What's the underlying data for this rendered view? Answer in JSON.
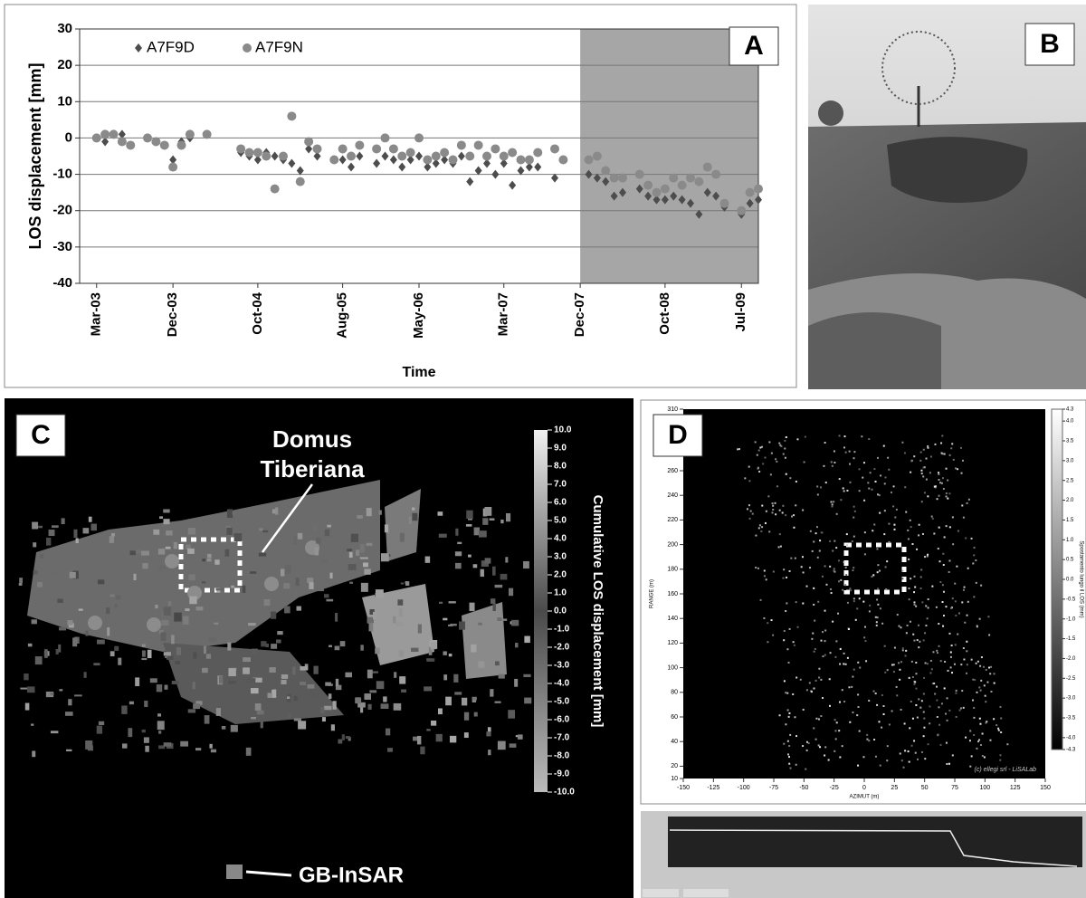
{
  "chart_data": {
    "type": "scatter",
    "label": "A",
    "ylabel": "LOS  displacement [mm]",
    "xlabel": "Time",
    "x": [
      "2003-03",
      "2003-04",
      "2003-05",
      "2003-06",
      "2003-07",
      "2003-09",
      "2003-10",
      "2003-11",
      "2003-12",
      "2004-01",
      "2004-02",
      "2004-04",
      "2004-08",
      "2004-09",
      "2004-10",
      "2004-11",
      "2004-12",
      "2005-01",
      "2005-02",
      "2005-03",
      "2005-04",
      "2005-05",
      "2005-07",
      "2005-08",
      "2005-09",
      "2005-10",
      "2005-12",
      "2006-01",
      "2006-02",
      "2006-03",
      "2006-04",
      "2006-05",
      "2006-06",
      "2006-07",
      "2006-08",
      "2006-09",
      "2006-10",
      "2006-11",
      "2006-12",
      "2007-01",
      "2007-02",
      "2007-03",
      "2007-04",
      "2007-05",
      "2007-06",
      "2007-07",
      "2007-09",
      "2007-10",
      "2008-01",
      "2008-02",
      "2008-03",
      "2008-04",
      "2008-05",
      "2008-07",
      "2008-08",
      "2008-09",
      "2008-10",
      "2008-11",
      "2008-12",
      "2009-01",
      "2009-02",
      "2009-03",
      "2009-04",
      "2009-05",
      "2009-07",
      "2009-08",
      "2009-09"
    ],
    "series": [
      {
        "name": "A7F9D",
        "color": "#4d4d4d",
        "marker": "diamond",
        "values": [
          0,
          -1,
          1,
          1,
          -2,
          0,
          -1,
          -2,
          -6,
          -1,
          0,
          1,
          -4,
          -5,
          -6,
          -4,
          -5,
          -6,
          -7,
          -9,
          -3,
          -5,
          -6,
          -6,
          -8,
          -5,
          -7,
          -5,
          -6,
          -8,
          -6,
          -5,
          -8,
          -7,
          -6,
          -7,
          -5,
          -12,
          -9,
          -7,
          -10,
          -7,
          -13,
          -9,
          -8,
          -8,
          -11,
          -6,
          -10,
          -11,
          -12,
          -16,
          -15,
          -14,
          -16,
          -17,
          -17,
          -16,
          -17,
          -18,
          -21,
          -15,
          -16,
          -19,
          -21,
          -18,
          -17
        ]
      },
      {
        "name": "A7F9N",
        "color": "#8a8a8a",
        "marker": "circle",
        "values": [
          0,
          1,
          1,
          -1,
          -2,
          0,
          -1,
          -2,
          -8,
          -2,
          1,
          1,
          -3,
          -4,
          -4,
          -5,
          -14,
          -5,
          6,
          -12,
          -1,
          -3,
          -6,
          -3,
          -5,
          -2,
          -3,
          0,
          -3,
          -5,
          -4,
          0,
          -6,
          -5,
          -4,
          -6,
          -2,
          -5,
          -2,
          -5,
          -3,
          -5,
          -4,
          -6,
          -6,
          -4,
          -3,
          -6,
          -6,
          -5,
          -9,
          -11,
          -11,
          -10,
          -13,
          -15,
          -14,
          -11,
          -13,
          -11,
          -12,
          -8,
          -10,
          -18,
          -20,
          -15,
          -14
        ]
      }
    ],
    "xlim": [
      "2003-01",
      "2009-09"
    ],
    "xticks": [
      {
        "value": "2003-03",
        "label": "Mar-03"
      },
      {
        "value": "2003-12",
        "label": "Dec-03"
      },
      {
        "value": "2004-10",
        "label": "Oct-04"
      },
      {
        "value": "2005-08",
        "label": "Aug-05"
      },
      {
        "value": "2006-05",
        "label": "May-06"
      },
      {
        "value": "2007-03",
        "label": "Mar-07"
      },
      {
        "value": "2007-12",
        "label": "Dec-07"
      },
      {
        "value": "2008-10",
        "label": "Oct-08"
      },
      {
        "value": "2009-07",
        "label": "Jul-09"
      }
    ],
    "ylim": [
      -40,
      30
    ],
    "yticks": [
      -40,
      -30,
      -20,
      -10,
      0,
      10,
      20,
      30
    ],
    "grid": true,
    "legend": "upper left",
    "shade_from": "2007-12",
    "shade_color": "#a6a6a6"
  },
  "panels": {
    "B": {
      "label": "B"
    },
    "C": {
      "label": "C",
      "annotation_lines": [
        "Domus",
        "Tiberiana"
      ],
      "gb_label": "GB-InSAR",
      "colorbar": {
        "title": "Cumulative LOS displacement [mm]",
        "lim": [
          -10,
          10
        ],
        "ticks": [
          {
            "value": 10,
            "label": "10.0"
          },
          {
            "value": 9,
            "label": "9.0"
          },
          {
            "value": 8,
            "label": "8.0"
          },
          {
            "value": 7,
            "label": "7.0"
          },
          {
            "value": 6,
            "label": "6.0"
          },
          {
            "value": 5,
            "label": "5.0"
          },
          {
            "value": 4,
            "label": "4.0"
          },
          {
            "value": 3,
            "label": "3.0"
          },
          {
            "value": 2,
            "label": "2.0"
          },
          {
            "value": 1,
            "label": "1.0"
          },
          {
            "value": 0,
            "label": "0.0"
          },
          {
            "value": -1,
            "label": "-1.0"
          },
          {
            "value": -2,
            "label": "-2.0"
          },
          {
            "value": -3,
            "label": "-3.0"
          },
          {
            "value": -4,
            "label": "-4.0"
          },
          {
            "value": -5,
            "label": "-5.0"
          },
          {
            "value": -6,
            "label": "-6.0"
          },
          {
            "value": -7,
            "label": "-7.0"
          },
          {
            "value": -8,
            "label": "-8.0"
          },
          {
            "value": -9,
            "label": "-9.0"
          },
          {
            "value": -10,
            "label": "-10.0"
          }
        ]
      }
    },
    "D": {
      "label": "D",
      "xlabel": "AZIMUT (m)",
      "ylabel": "RANGE (m)",
      "credit": "(c) ellegi srl - LiSALab",
      "xlim": [
        -150,
        150
      ],
      "xticks": [
        -150,
        -125,
        -100,
        -75,
        -50,
        -25,
        0,
        25,
        50,
        75,
        100,
        125,
        150
      ],
      "ylim": [
        10,
        310
      ],
      "yticks": [
        10,
        20,
        40,
        60,
        80,
        100,
        120,
        140,
        160,
        180,
        200,
        220,
        240,
        260,
        310
      ],
      "colorbar": {
        "title": "Spostamento lungo il LOS (mm)",
        "lim": [
          -4.3,
          4.3
        ],
        "ticks": [
          {
            "value": 4.3,
            "label": "4.3"
          },
          {
            "value": 4,
            "label": "4.0"
          },
          3.5,
          {
            "value": 3,
            "label": "3.0"
          },
          2.5,
          {
            "value": 2,
            "label": "2.0"
          },
          1.5,
          {
            "value": 1,
            "label": "1.0"
          },
          0.5,
          {
            "value": 0,
            "label": "0.0"
          },
          -0.5,
          {
            "value": -1,
            "label": "-1.0"
          },
          -1.5,
          {
            "value": -2,
            "label": "-2.0"
          },
          -2.5,
          {
            "value": -3,
            "label": "-3.0"
          },
          -3.5,
          {
            "value": -4,
            "label": "-4.0"
          },
          {
            "value": -4.3,
            "label": "-4.3"
          }
        ]
      }
    }
  }
}
